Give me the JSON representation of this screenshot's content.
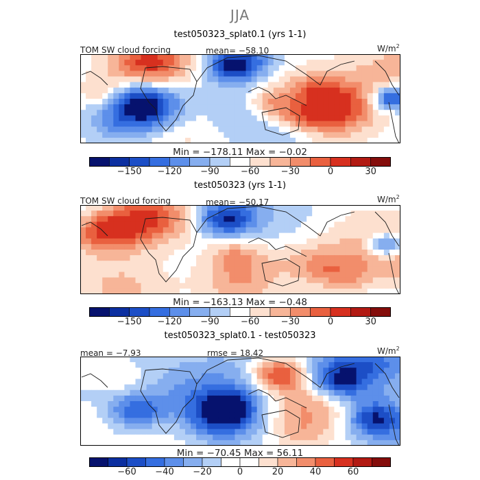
{
  "season": "JJA",
  "colors": {
    "positive": [
      "#fde0cf",
      "#f7b598",
      "#f28d6b",
      "#e9603f",
      "#d7301f",
      "#b21a13",
      "#840d0b"
    ],
    "negative": [
      "#ffffff",
      "#d7e6fb",
      "#aecbf5",
      "#86aeef",
      "#5d8fea",
      "#356ee0",
      "#1c4ec6",
      "#0c31a1",
      "#06126e"
    ],
    "bands_12": [
      "#06126e",
      "#0c2fa0",
      "#1c4ec6",
      "#356ee0",
      "#5d8fea",
      "#86aeef",
      "#b3cff6",
      "#ffffff",
      "#fde0cf",
      "#f7b598",
      "#f28d6b",
      "#e9603f",
      "#d7301f",
      "#b21a13",
      "#840d0b"
    ],
    "coast": "#1a1a1a"
  },
  "chart_data": [
    {
      "type": "heatmap",
      "title": "test050323_splat0.1 (yrs 1-1)",
      "variable": "TOM SW cloud forcing",
      "units_base": "W/m",
      "units_exp": "2",
      "mean_text": "mean= −58.10",
      "min_max_text": "Min = −178.11 Max = −0.02",
      "min": -178.11,
      "max": -0.02,
      "mean": -58.1,
      "colorbar_levels": [
        -180,
        -165,
        -150,
        -135,
        -120,
        -105,
        -90,
        -75,
        -60,
        -45,
        -30,
        -15,
        0,
        15,
        30,
        45
      ],
      "colorbar_tick_labels": [
        "−150",
        "−120",
        "−90",
        "−60",
        "−30",
        "0",
        "30"
      ],
      "colorbar_tick_values": [
        -150,
        -120,
        -90,
        -60,
        -30,
        0,
        30
      ]
    },
    {
      "type": "heatmap",
      "title": "test050323 (yrs 1-1)",
      "variable": "TOM SW cloud forcing",
      "units_base": "W/m",
      "units_exp": "2",
      "mean_text": "mean= −50.17",
      "min_max_text": "Min = −163.13 Max = −0.48",
      "min": -163.13,
      "max": -0.48,
      "mean": -50.17,
      "colorbar_levels": [
        -180,
        -165,
        -150,
        -135,
        -120,
        -105,
        -90,
        -75,
        -60,
        -45,
        -30,
        -15,
        0,
        15,
        30,
        45
      ],
      "colorbar_tick_labels": [
        "−150",
        "−120",
        "−90",
        "−60",
        "−30",
        "0",
        "30"
      ],
      "colorbar_tick_values": [
        -150,
        -120,
        -90,
        -60,
        -30,
        0,
        30
      ]
    },
    {
      "type": "heatmap",
      "title": "test050323_splat0.1 - test050323",
      "variable": "",
      "units_base": "W/m",
      "units_exp": "2",
      "mean_text": "mean =  −7.93",
      "rmse_text": "rmse =  18.42",
      "min_max_text": "Min = −70.45 Max =  56.11",
      "min": -70.45,
      "max": 56.11,
      "mean": -7.93,
      "rmse": 18.42,
      "colorbar_levels": [
        -80,
        -70,
        -60,
        -50,
        -40,
        -30,
        -20,
        -10,
        0,
        10,
        20,
        30,
        40,
        50,
        60,
        70,
        80
      ],
      "colorbar_tick_labels": [
        "−60",
        "−40",
        "−20",
        "0",
        "20",
        "40",
        "60"
      ],
      "colorbar_tick_values": [
        -60,
        -40,
        -20,
        0,
        20,
        40,
        60
      ]
    }
  ]
}
